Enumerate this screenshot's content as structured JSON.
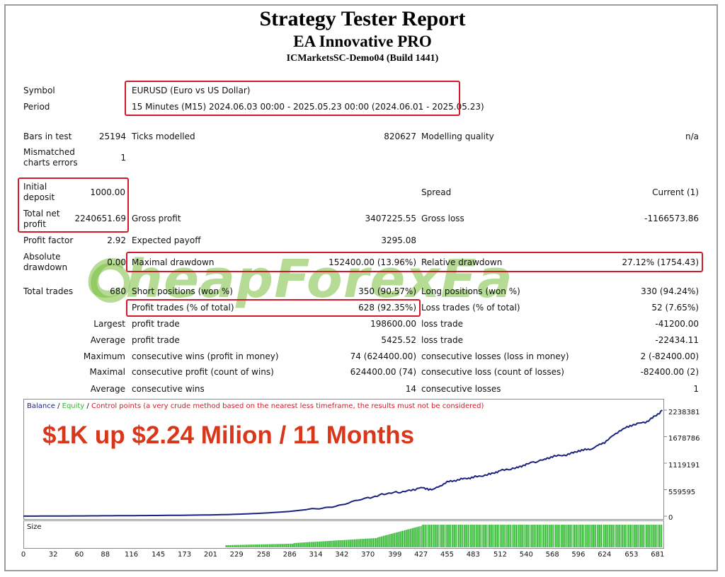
{
  "header": {
    "title": "Strategy Tester Report",
    "ea_name": "EA Innovative PRO",
    "server": "ICMarketsSC-Demo04 (Build 1441)"
  },
  "info": {
    "symbol_label": "Symbol",
    "symbol_value": "EURUSD (Euro vs US Dollar)",
    "period_label": "Period",
    "period_value": "15 Minutes (M15) 2024.06.03 00:00 - 2025.05.23 00:00 (2024.06.01 - 2025.05.23)"
  },
  "stats": {
    "bars_label": "Bars in test",
    "bars_value": "25194",
    "ticks_label": "Ticks modelled",
    "ticks_value": "820627",
    "quality_label": "Modelling quality",
    "quality_value": "n/a",
    "mismatch_label": "Mismatched charts errors",
    "mismatch_value": "1",
    "deposit_label": "Initial deposit",
    "deposit_value": "1000.00",
    "spread_label": "Spread",
    "spread_value": "Current (1)",
    "netprofit_label": "Total net profit",
    "netprofit_value": "2240651.69",
    "grossprofit_label": "Gross profit",
    "grossprofit_value": "3407225.55",
    "grossloss_label": "Gross loss",
    "grossloss_value": "-1166573.86",
    "pf_label": "Profit factor",
    "pf_value": "2.92",
    "payoff_label": "Expected payoff",
    "payoff_value": "3295.08",
    "absdd_label": "Absolute drawdown",
    "absdd_value": "0.00",
    "maxdd_label": "Maximal drawdown",
    "maxdd_value": "152400.00 (13.96%)",
    "reldd_label": "Relative drawdown",
    "reldd_value": "27.12% (1754.43)",
    "trades_label": "Total trades",
    "trades_value": "680",
    "short_label": "Short positions (won %)",
    "short_value": "350 (90.57%)",
    "long_label": "Long positions (won %)",
    "long_value": "330 (94.24%)",
    "profittrades_label": "Profit trades (% of total)",
    "profittrades_value": "628 (92.35%)",
    "losstrades_label": "Loss trades (% of total)",
    "losstrades_value": "52 (7.65%)",
    "largest_label": "Largest",
    "largest_profit_label": "profit trade",
    "largest_profit_value": "198600.00",
    "largest_loss_label": "loss trade",
    "largest_loss_value": "-41200.00",
    "average_label": "Average",
    "average_profit_label": "profit trade",
    "average_profit_value": "5425.52",
    "average_loss_label": "loss trade",
    "average_loss_value": "-22434.11",
    "maximum_label": "Maximum",
    "max_wins_label": "consecutive wins (profit in money)",
    "max_wins_value": "74 (624400.00)",
    "max_losses_label": "consecutive losses (loss in money)",
    "max_losses_value": "2 (-82400.00)",
    "maximal_label": "Maximal",
    "maximal_profit_label": "consecutive profit (count of wins)",
    "maximal_profit_value": "624400.00 (74)",
    "maximal_loss_label": "consecutive loss (count of losses)",
    "maximal_loss_value": "-82400.00 (2)",
    "avg2_label": "Average",
    "avg_wins_label": "consecutive wins",
    "avg_wins_value": "14",
    "avg_losses_label": "consecutive losses",
    "avg_losses_value": "1"
  },
  "watermark": "CheapForexEa",
  "chart_legend": {
    "balance": "Balance",
    "sep1": " / ",
    "equity": "Equity",
    "sep2": " / ",
    "control": "Control points (a very crude method based on the nearest less timeframe, the results must not be considered)"
  },
  "promo_text": "$1K up $2.24 Milion / 11 Months",
  "size_label": "Size",
  "colors": {
    "highlight": "#d11a2a",
    "balance": "#1a237e",
    "size_bars": "#2db82d",
    "promo": "#d9361a",
    "watermark": "#78be3c"
  },
  "chart_data": {
    "type": "line",
    "series": [
      {
        "name": "Balance",
        "x": [
          0,
          30,
          60,
          100,
          150,
          200,
          229,
          258,
          286,
          314,
          342,
          370,
          390,
          410,
          427,
          440,
          455,
          470,
          483,
          500,
          512,
          530,
          540,
          560,
          568,
          585,
          596,
          610,
          624,
          640,
          653,
          670,
          681,
          686
        ],
        "y": [
          1000,
          3000,
          6000,
          10000,
          16000,
          26000,
          40000,
          65000,
          100000,
          160000,
          240000,
          380000,
          480000,
          520000,
          600000,
          560000,
          720000,
          780000,
          820000,
          880000,
          960000,
          1020000,
          1100000,
          1200000,
          1260000,
          1300000,
          1380000,
          1420000,
          1560000,
          1800000,
          1920000,
          2000000,
          2150000,
          2238381
        ]
      }
    ],
    "y_ticks": [
      "0",
      "559595",
      "1119191",
      "1678786",
      "2238381"
    ],
    "y_tick_values": [
      0,
      559595,
      1119191,
      1678786,
      2238381
    ],
    "x_ticks": [
      "0",
      "32",
      "60",
      "88",
      "116",
      "145",
      "173",
      "201",
      "229",
      "258",
      "286",
      "314",
      "342",
      "370",
      "399",
      "427",
      "455",
      "483",
      "512",
      "540",
      "568",
      "596",
      "624",
      "653",
      "681"
    ],
    "xlim": [
      0,
      688
    ],
    "ylim": [
      0,
      2400000
    ],
    "size_series": {
      "start": 217,
      "ramp_end": 427,
      "end": 686
    }
  }
}
